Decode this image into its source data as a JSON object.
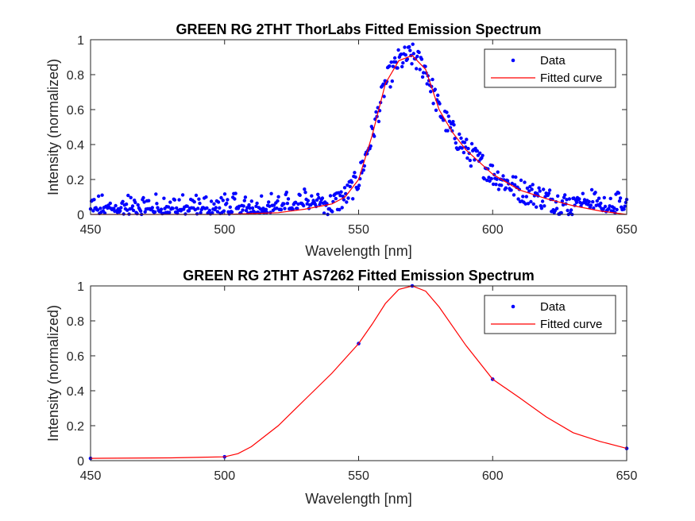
{
  "chart_data": [
    {
      "type": "scatter",
      "title": "GREEN RG 2THT ThorLabs Fitted Emission Spectrum",
      "xlabel": "Wavelength [nm]",
      "ylabel": "Intensity (normalized)",
      "xlim": [
        450,
        650
      ],
      "ylim": [
        0,
        1
      ],
      "xticks": [
        450,
        500,
        550,
        600,
        650
      ],
      "xtick_labels": [
        "450",
        "500",
        "550",
        "600",
        "650"
      ],
      "yticks": [
        0,
        0.2,
        0.4,
        0.6,
        0.8,
        1
      ],
      "ytick_labels": [
        "0",
        "0.2",
        "0.4",
        "0.6",
        "0.8",
        "1"
      ],
      "grid": false,
      "legend_position": "top-right",
      "legend": [
        "Data",
        "Fitted curve"
      ],
      "colors": {
        "data": "#0000ff",
        "fit": "#ff0000"
      },
      "series": [
        {
          "name": "Data",
          "type": "scatter",
          "x_range": [
            450,
            650
          ],
          "n_points": 600,
          "description_shape": "noisy points following fitted curve"
        },
        {
          "name": "Fitted curve",
          "type": "line",
          "x": [
            450,
            500,
            520,
            530,
            540,
            545,
            550,
            555,
            560,
            565,
            570,
            575,
            580,
            585,
            590,
            600,
            610,
            620,
            630,
            640,
            650
          ],
          "y": [
            0.0,
            0.0,
            0.01,
            0.03,
            0.06,
            0.1,
            0.2,
            0.45,
            0.75,
            0.88,
            0.91,
            0.83,
            0.6,
            0.47,
            0.37,
            0.23,
            0.14,
            0.09,
            0.05,
            0.02,
            0.0
          ]
        }
      ]
    },
    {
      "type": "line",
      "title": "GREEN RG 2THT AS7262 Fitted Emission Spectrum",
      "xlabel": "Wavelength [nm]",
      "ylabel": "Intensity (normalized)",
      "xlim": [
        450,
        650
      ],
      "ylim": [
        0,
        1
      ],
      "xticks": [
        450,
        500,
        550,
        600,
        650
      ],
      "xtick_labels": [
        "450",
        "500",
        "550",
        "600",
        "650"
      ],
      "yticks": [
        0,
        0.2,
        0.4,
        0.6,
        0.8,
        1
      ],
      "ytick_labels": [
        "0",
        "0.2",
        "0.4",
        "0.6",
        "0.8",
        "1"
      ],
      "grid": false,
      "legend_position": "top-right",
      "legend": [
        "Data",
        "Fitted curve"
      ],
      "colors": {
        "data": "#0000ff",
        "fit": "#ff0000"
      },
      "series": [
        {
          "name": "Data",
          "type": "scatter",
          "x": [
            450,
            500,
            550,
            570,
            600,
            650
          ],
          "y": [
            0.013,
            0.022,
            0.67,
            1.0,
            0.466,
            0.07
          ]
        },
        {
          "name": "Fitted curve",
          "type": "line",
          "x": [
            450,
            480,
            500,
            505,
            510,
            520,
            530,
            540,
            550,
            555,
            560,
            565,
            570,
            575,
            580,
            590,
            600,
            610,
            620,
            630,
            640,
            650
          ],
          "y": [
            0.013,
            0.016,
            0.022,
            0.04,
            0.08,
            0.2,
            0.35,
            0.5,
            0.67,
            0.78,
            0.9,
            0.98,
            1.0,
            0.97,
            0.88,
            0.66,
            0.466,
            0.36,
            0.25,
            0.16,
            0.11,
            0.07
          ]
        }
      ]
    }
  ]
}
